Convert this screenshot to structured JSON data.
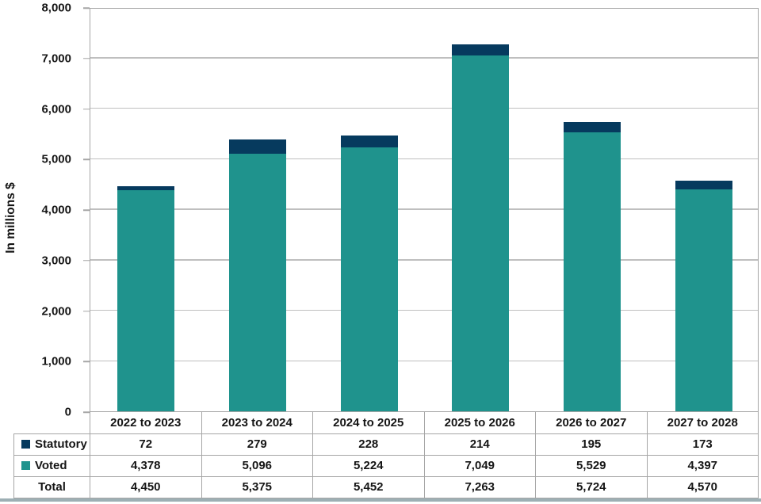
{
  "chart_data": {
    "type": "bar",
    "stacked": true,
    "title": "",
    "ylabel": "In millions $",
    "xlabel": "",
    "ylim": [
      0,
      8000
    ],
    "ytick_interval": 1000,
    "ytick_labels": [
      "0",
      "1,000",
      "2,000",
      "3,000",
      "4,000",
      "5,000",
      "6,000",
      "7,000",
      "8,000"
    ],
    "grid": true,
    "legend_position": "table-row-labels",
    "categories": [
      "2022 to 2023",
      "2023 to 2024",
      "2024 to 2025",
      "2025 to 2026",
      "2026 to 2027",
      "2027 to 2028"
    ],
    "series": [
      {
        "name": "Statutory",
        "color": "#063a5e",
        "stack_position": "top",
        "values": [
          72,
          279,
          228,
          214,
          195,
          173
        ],
        "labels": [
          "72",
          "279",
          "228",
          "214",
          "195",
          "173"
        ]
      },
      {
        "name": "Voted",
        "color": "#1f938d",
        "stack_position": "bottom",
        "values": [
          4378,
          5096,
          5224,
          7049,
          5529,
          4397
        ],
        "labels": [
          "4,378",
          "5,096",
          "5,224",
          "7,049",
          "5,529",
          "4,397"
        ]
      }
    ],
    "total_row": {
      "label": "Total",
      "values": [
        4450,
        5375,
        5452,
        7263,
        5724,
        4570
      ],
      "labels": [
        "4,450",
        "5,375",
        "5,452",
        "7,263",
        "5,724",
        "4,570"
      ]
    }
  },
  "colors": {
    "plot_border": "#a6a6a6",
    "gridline": "#bfbfbf",
    "table_border": "#a6a6a6",
    "bottom_rule": "#9dafb4",
    "statutory": "#063a5e",
    "voted": "#1f938d"
  }
}
